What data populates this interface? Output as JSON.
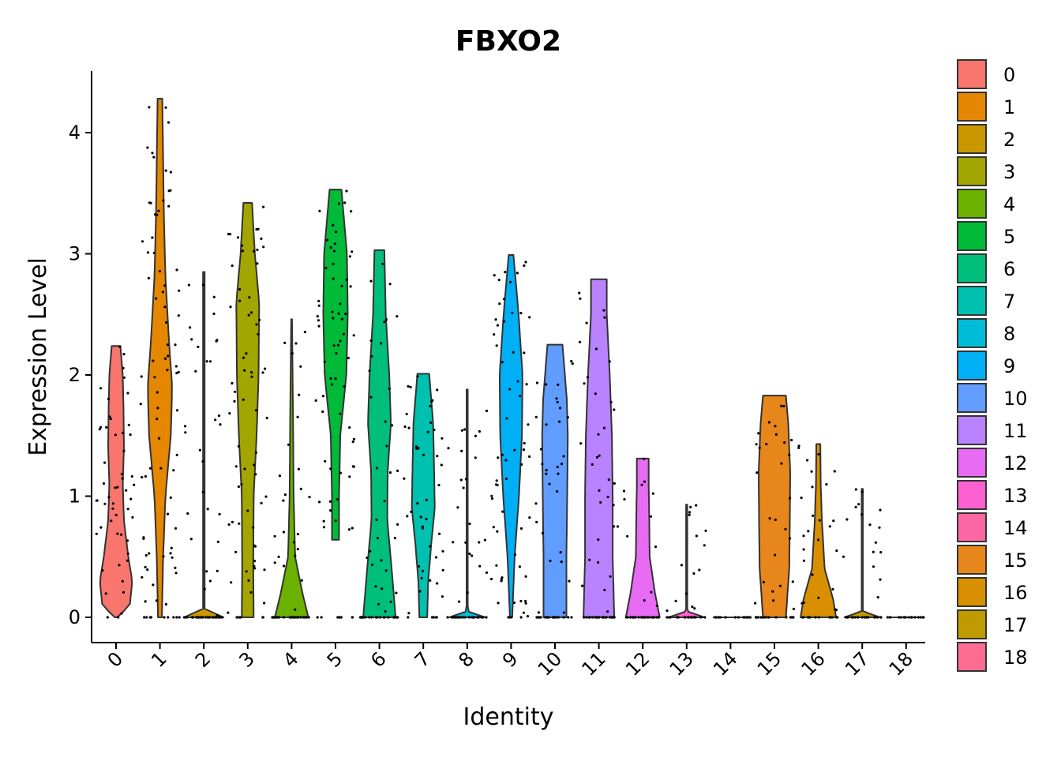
{
  "chart_data": {
    "type": "violin",
    "title": "FBXO2",
    "xlabel": "Identity",
    "ylabel": "Expression Level",
    "ylim": [
      -0.2,
      4.5
    ],
    "yticks": [
      0,
      1,
      2,
      3,
      4
    ],
    "jitter_points": true,
    "legend_position": "right",
    "categories": [
      "0",
      "1",
      "2",
      "3",
      "4",
      "5",
      "6",
      "7",
      "8",
      "9",
      "10",
      "11",
      "12",
      "13",
      "14",
      "15",
      "16",
      "17",
      "18"
    ],
    "colors": [
      "#F8766D",
      "#E58700",
      "#C99800",
      "#A3A500",
      "#6BB100",
      "#00BA38",
      "#00BF7D",
      "#00C0AF",
      "#00BCD8",
      "#00B0F6",
      "#619CFF",
      "#B983FF",
      "#E76BF3",
      "#FD61D1",
      "#FF67A4",
      "#E7861B",
      "#D89000",
      "#C09B00",
      "#FF6C91"
    ],
    "series": [
      {
        "name": "0",
        "max": 2.24,
        "shape": [
          [
            0,
            0.06
          ],
          [
            0.1,
            0.7
          ],
          [
            0.3,
            0.82
          ],
          [
            0.5,
            0.62
          ],
          [
            0.8,
            0.4
          ],
          [
            1.1,
            0.34
          ],
          [
            1.4,
            0.4
          ],
          [
            1.7,
            0.38
          ],
          [
            2.0,
            0.34
          ],
          [
            2.24,
            0.22
          ]
        ]
      },
      {
        "name": "1",
        "max": 4.28,
        "shape": [
          [
            0,
            0.1
          ],
          [
            0.5,
            0.16
          ],
          [
            1.0,
            0.28
          ],
          [
            1.5,
            0.55
          ],
          [
            1.9,
            0.62
          ],
          [
            2.3,
            0.45
          ],
          [
            2.8,
            0.28
          ],
          [
            3.3,
            0.2
          ],
          [
            3.8,
            0.16
          ],
          [
            4.28,
            0.12
          ]
        ]
      },
      {
        "name": "2",
        "max": 2.85,
        "shape": [
          [
            0,
            1.0
          ],
          [
            0.05,
            0.04
          ],
          [
            1.0,
            0.04
          ],
          [
            2.85,
            0.04
          ]
        ]
      },
      {
        "name": "3",
        "max": 3.42,
        "shape": [
          [
            0,
            0.3
          ],
          [
            0.4,
            0.28
          ],
          [
            1.0,
            0.3
          ],
          [
            1.5,
            0.45
          ],
          [
            2.0,
            0.55
          ],
          [
            2.6,
            0.58
          ],
          [
            3.0,
            0.36
          ],
          [
            3.42,
            0.22
          ]
        ]
      },
      {
        "name": "4",
        "max": 2.46,
        "shape": [
          [
            0,
            0.85
          ],
          [
            0.2,
            0.55
          ],
          [
            0.5,
            0.18
          ],
          [
            1.0,
            0.1
          ],
          [
            1.5,
            0.08
          ],
          [
            2.0,
            0.05
          ],
          [
            2.46,
            0.02
          ]
        ]
      },
      {
        "name": "5",
        "max": 3.53,
        "shape": [
          [
            0.64,
            0.18
          ],
          [
            1.0,
            0.18
          ],
          [
            1.5,
            0.24
          ],
          [
            2.0,
            0.55
          ],
          [
            2.5,
            0.62
          ],
          [
            3.0,
            0.58
          ],
          [
            3.53,
            0.3
          ]
        ]
      },
      {
        "name": "6",
        "max": 3.03,
        "shape": [
          [
            0,
            0.82
          ],
          [
            0.4,
            0.62
          ],
          [
            0.8,
            0.4
          ],
          [
            1.2,
            0.42
          ],
          [
            1.6,
            0.58
          ],
          [
            2.0,
            0.5
          ],
          [
            2.5,
            0.32
          ],
          [
            3.03,
            0.25
          ]
        ]
      },
      {
        "name": "7",
        "max": 2.01,
        "shape": [
          [
            0,
            0.2
          ],
          [
            0.3,
            0.25
          ],
          [
            0.6,
            0.4
          ],
          [
            0.9,
            0.58
          ],
          [
            1.2,
            0.55
          ],
          [
            1.6,
            0.5
          ],
          [
            2.01,
            0.3
          ]
        ]
      },
      {
        "name": "8",
        "max": 1.88,
        "shape": [
          [
            0,
            0.9
          ],
          [
            0.05,
            0.03
          ],
          [
            1.0,
            0.03
          ],
          [
            1.88,
            0.03
          ]
        ]
      },
      {
        "name": "9",
        "max": 2.99,
        "shape": [
          [
            0,
            0.06
          ],
          [
            0.5,
            0.18
          ],
          [
            1.0,
            0.4
          ],
          [
            1.5,
            0.55
          ],
          [
            2.0,
            0.58
          ],
          [
            2.5,
            0.38
          ],
          [
            2.99,
            0.12
          ]
        ]
      },
      {
        "name": "10",
        "max": 2.25,
        "shape": [
          [
            0,
            0.58
          ],
          [
            0.5,
            0.58
          ],
          [
            1.0,
            0.62
          ],
          [
            1.5,
            0.65
          ],
          [
            1.8,
            0.6
          ],
          [
            2.25,
            0.38
          ]
        ]
      },
      {
        "name": "11",
        "max": 2.79,
        "shape": [
          [
            0,
            0.78
          ],
          [
            0.5,
            0.7
          ],
          [
            1.0,
            0.7
          ],
          [
            1.5,
            0.66
          ],
          [
            2.0,
            0.55
          ],
          [
            2.5,
            0.4
          ],
          [
            2.79,
            0.4
          ]
        ]
      },
      {
        "name": "12",
        "max": 1.31,
        "shape": [
          [
            0,
            0.86
          ],
          [
            0.2,
            0.62
          ],
          [
            0.5,
            0.35
          ],
          [
            0.8,
            0.33
          ],
          [
            1.1,
            0.3
          ],
          [
            1.31,
            0.3
          ]
        ]
      },
      {
        "name": "13",
        "max": 0.93,
        "shape": [
          [
            0,
            0.9
          ],
          [
            0.05,
            0.03
          ],
          [
            0.93,
            0.03
          ]
        ]
      },
      {
        "name": "14",
        "max": 0.0,
        "shape": [
          [
            0,
            0.9
          ]
        ]
      },
      {
        "name": "15",
        "max": 1.83,
        "shape": [
          [
            0,
            0.58
          ],
          [
            0.4,
            0.75
          ],
          [
            0.8,
            0.78
          ],
          [
            1.2,
            0.8
          ],
          [
            1.6,
            0.7
          ],
          [
            1.83,
            0.58
          ]
        ]
      },
      {
        "name": "16",
        "max": 1.43,
        "shape": [
          [
            0,
            0.9
          ],
          [
            0.15,
            0.75
          ],
          [
            0.4,
            0.32
          ],
          [
            0.8,
            0.18
          ],
          [
            1.1,
            0.12
          ],
          [
            1.43,
            0.1
          ]
        ]
      },
      {
        "name": "17",
        "max": 1.06,
        "shape": [
          [
            0,
            0.9
          ],
          [
            0.05,
            0.03
          ],
          [
            1.06,
            0.03
          ]
        ]
      },
      {
        "name": "18",
        "max": 0.0,
        "shape": [
          [
            0,
            0.9
          ]
        ]
      }
    ]
  }
}
